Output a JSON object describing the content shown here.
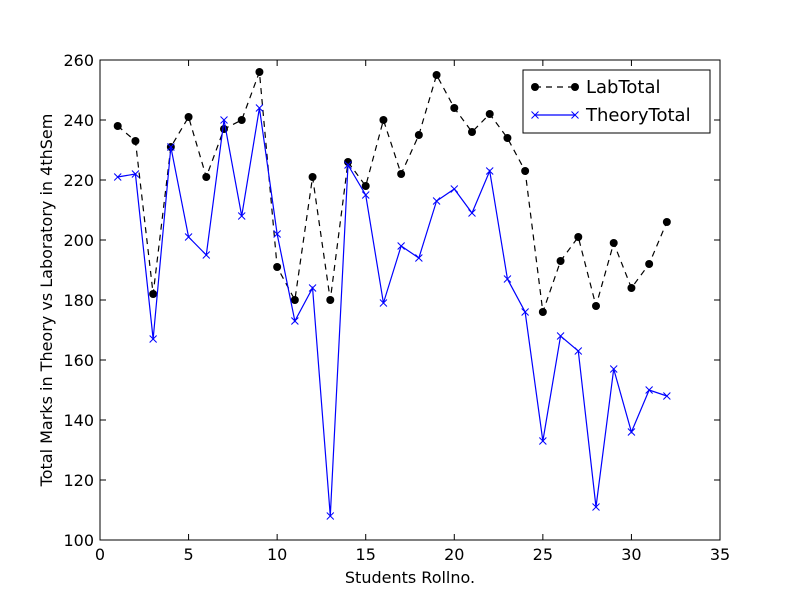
{
  "chart_data": {
    "type": "line",
    "title": "",
    "xlabel": "Students Rollno.",
    "ylabel": "Total Marks in Theory vs Laboratory in 4thSem",
    "xlim": [
      0,
      35
    ],
    "ylim": [
      100,
      260
    ],
    "x_ticks": [
      0,
      5,
      10,
      15,
      20,
      25,
      30,
      35
    ],
    "y_ticks": [
      100,
      120,
      140,
      160,
      180,
      200,
      220,
      240,
      260
    ],
    "grid": false,
    "legend_position": "top-right",
    "x": [
      1,
      2,
      3,
      4,
      5,
      6,
      7,
      8,
      9,
      10,
      11,
      12,
      13,
      14,
      15,
      16,
      17,
      18,
      19,
      20,
      21,
      22,
      23,
      24,
      25,
      26,
      27,
      28,
      29,
      30,
      31,
      32
    ],
    "series": [
      {
        "name": "LabTotal",
        "color": "#000000",
        "line_style": "dashed",
        "marker": "circle",
        "values": [
          238,
          233,
          182,
          231,
          241,
          221,
          237,
          240,
          256,
          191,
          180,
          221,
          180,
          226,
          218,
          240,
          222,
          235,
          255,
          244,
          236,
          242,
          234,
          223,
          176,
          193,
          201,
          178,
          199,
          184,
          192,
          206
        ]
      },
      {
        "name": "TheoryTotal",
        "color": "#0000ff",
        "line_style": "solid",
        "marker": "x",
        "values": [
          221,
          222,
          167,
          231,
          201,
          195,
          240,
          208,
          244,
          202,
          173,
          184,
          108,
          225,
          215,
          179,
          198,
          194,
          213,
          217,
          209,
          223,
          187,
          176,
          133,
          168,
          163,
          111,
          157,
          136,
          150,
          148
        ]
      }
    ]
  }
}
